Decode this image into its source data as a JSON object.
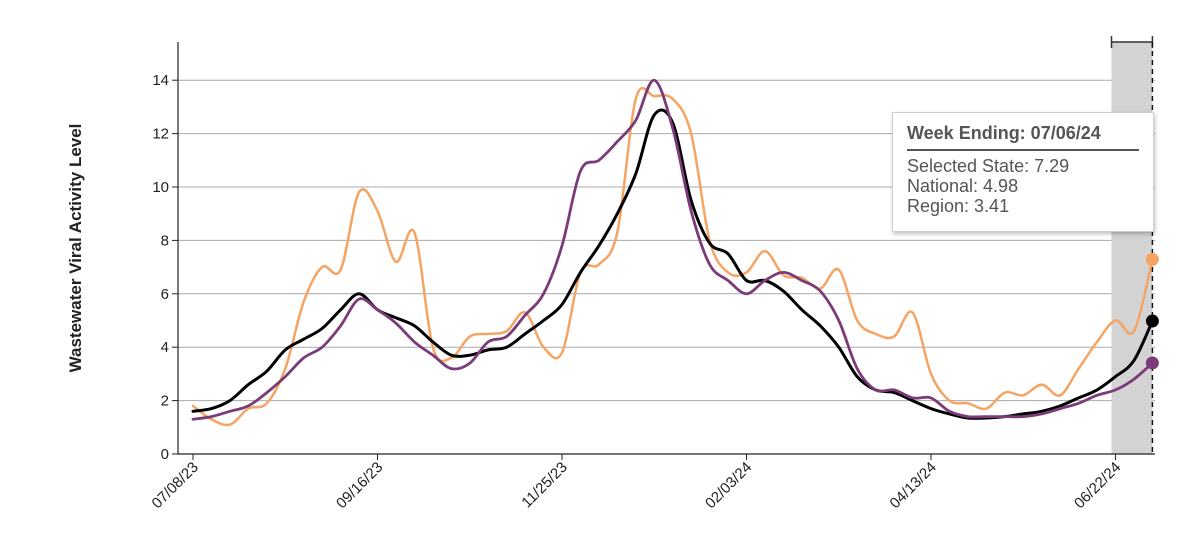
{
  "chart_data": {
    "type": "line",
    "ylabel": "Wastewater Viral Activity Level",
    "xlabel": "",
    "ylim": [
      0,
      15
    ],
    "yticks": [
      0,
      2,
      4,
      6,
      8,
      10,
      12,
      14
    ],
    "x_tick_labels": [
      "07/08/23",
      "09/16/23",
      "11/25/23",
      "02/03/24",
      "04/13/24",
      "06/22/24"
    ],
    "grid": true,
    "highlight_weeks": [
      "06/22/24",
      "06/29/24",
      "07/06/24"
    ],
    "colors": {
      "selected_state": "#f5a463",
      "national": "#000000",
      "region": "#7a3b78",
      "highlight": "#d3d3d3"
    },
    "series": [
      {
        "key": "selected_state",
        "name": "Selected State",
        "values": [
          1.8,
          1.3,
          1.1,
          1.7,
          1.9,
          3.2,
          5.7,
          7.0,
          6.9,
          9.8,
          9.1,
          7.2,
          8.3,
          4.0,
          3.6,
          4.4,
          4.5,
          4.6,
          5.3,
          4.0,
          3.8,
          6.8,
          7.1,
          8.3,
          13.3,
          13.4,
          13.3,
          12.0,
          8.0,
          6.8,
          6.8,
          7.6,
          6.7,
          6.6,
          6.2,
          6.9,
          5.0,
          4.5,
          4.4,
          5.3,
          3.0,
          2.0,
          1.9,
          1.7,
          2.3,
          2.2,
          2.6,
          2.2,
          3.2,
          4.2,
          5.0,
          4.6,
          7.29
        ]
      },
      {
        "key": "national",
        "name": "National",
        "values": [
          1.6,
          1.7,
          2.0,
          2.6,
          3.1,
          3.9,
          4.3,
          4.7,
          5.4,
          6.0,
          5.4,
          5.1,
          4.8,
          4.2,
          3.7,
          3.7,
          3.9,
          4.0,
          4.5,
          5.0,
          5.6,
          6.8,
          7.8,
          9.0,
          10.5,
          12.7,
          12.4,
          9.5,
          7.9,
          7.5,
          6.5,
          6.5,
          6.1,
          5.4,
          4.8,
          4.0,
          2.9,
          2.4,
          2.3,
          2.0,
          1.7,
          1.5,
          1.35,
          1.35,
          1.4,
          1.5,
          1.6,
          1.8,
          2.1,
          2.4,
          2.9,
          3.5,
          4.98
        ]
      },
      {
        "key": "region",
        "name": "Region",
        "values": [
          1.3,
          1.4,
          1.6,
          1.8,
          2.3,
          2.9,
          3.6,
          4.0,
          4.8,
          5.8,
          5.4,
          4.9,
          4.2,
          3.7,
          3.2,
          3.4,
          4.2,
          4.4,
          5.2,
          6.0,
          7.8,
          10.6,
          11.0,
          11.7,
          12.5,
          14.0,
          12.2,
          9.1,
          7.1,
          6.5,
          6.0,
          6.5,
          6.8,
          6.5,
          6.1,
          5.0,
          3.2,
          2.4,
          2.4,
          2.1,
          2.1,
          1.6,
          1.4,
          1.4,
          1.4,
          1.4,
          1.5,
          1.7,
          1.9,
          2.2,
          2.4,
          2.8,
          3.41
        ]
      }
    ]
  },
  "tooltip": {
    "title": "Week Ending: 07/06/24",
    "lines": [
      "Selected State: 7.29",
      "National: 4.98",
      "Region: 3.41"
    ]
  }
}
